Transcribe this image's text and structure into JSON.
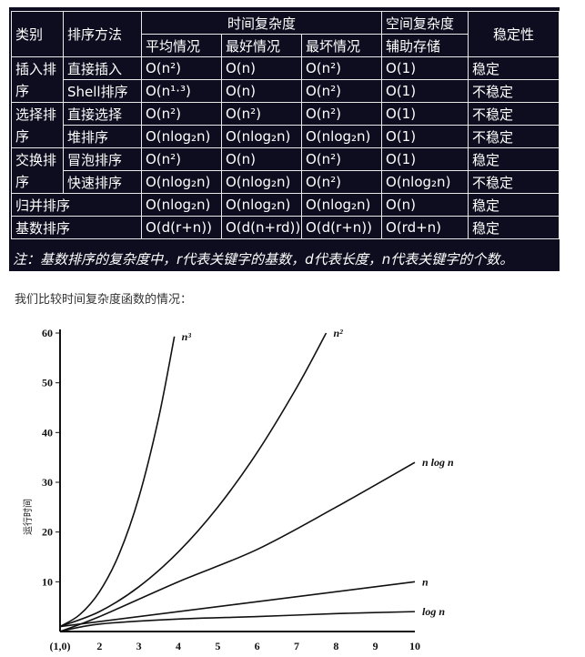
{
  "table": {
    "header": {
      "category": "类别",
      "method": "排序方法",
      "time_group": "时间复杂度",
      "space_group": "空间复杂度",
      "stability": "稳定性",
      "avg": "平均情况",
      "best": "最好情况",
      "worst": "最坏情况",
      "aux": "辅助存储"
    },
    "groups": [
      {
        "name": "插入排序",
        "rows": [
          {
            "method": "直接插入",
            "avg": "O(n²)",
            "best": "O(n)",
            "worst": "O(n²)",
            "space": "O(1)",
            "stable": "稳定"
          },
          {
            "method": "Shell排序",
            "avg": "O(n¹·³)",
            "best": "O(n)",
            "worst": "O(n²)",
            "space": "O(1)",
            "stable": "不稳定"
          }
        ]
      },
      {
        "name": "选择排序",
        "rows": [
          {
            "method": "直接选择",
            "avg": "O(n²)",
            "best": "O(n²)",
            "worst": "O(n²)",
            "space": "O(1)",
            "stable": "不稳定"
          },
          {
            "method": "堆排序",
            "avg": "O(nlog₂n)",
            "best": "O(nlog₂n)",
            "worst": "O(nlog₂n)",
            "space": "O(1)",
            "stable": "不稳定"
          }
        ]
      },
      {
        "name": "交换排序",
        "rows": [
          {
            "method": "冒泡排序",
            "avg": "O(n²)",
            "best": "O(n)",
            "worst": "O(n²)",
            "space": "O(1)",
            "stable": "稳定"
          },
          {
            "method": "快速排序",
            "avg": "O(nlog₂n)",
            "best": "O(nlog₂n)",
            "worst": "O(n²)",
            "space": "O(nlog₂n)",
            "stable": "不稳定"
          }
        ]
      }
    ],
    "singles": [
      {
        "name": "归并排序",
        "avg": "O(nlog₂n)",
        "best": "O(nlog₂n)",
        "worst": "O(nlog₂n)",
        "space": "O(n)",
        "stable": "稳定"
      },
      {
        "name": "基数排序",
        "avg": "O(d(r+n))",
        "best": "O(d(n+rd))",
        "worst": "O(d(r+n))",
        "space": "O(rd+n)",
        "stable": "稳定"
      }
    ],
    "note": "注：基数排序的复杂度中，r代表关键字的基数，d代表长度，n代表关键字的个数。"
  },
  "intro_text": "我们比较时间复杂度函数的情况：",
  "chart_data": {
    "type": "line",
    "ylabel": "运行时间",
    "x_ticks": [
      "(1,0)",
      "2",
      "3",
      "4",
      "5",
      "6",
      "7",
      "8",
      "9",
      "10"
    ],
    "y_ticks": [
      "10",
      "20",
      "30",
      "40",
      "50",
      "60"
    ],
    "xlim": [
      1,
      10
    ],
    "ylim": [
      0,
      60
    ],
    "series": [
      {
        "name": "n³",
        "x": [
          1,
          1.5,
          2,
          2.5,
          3,
          3.5,
          3.9
        ],
        "y": [
          1,
          3.4,
          8,
          15.6,
          27,
          42.9,
          59.3
        ]
      },
      {
        "name": "n²",
        "x": [
          1,
          2,
          3,
          4,
          5,
          6,
          7,
          7.75
        ],
        "y": [
          1,
          4,
          9,
          16,
          25,
          36,
          49,
          60
        ]
      },
      {
        "name": "n log n",
        "x": [
          1,
          2,
          4,
          6,
          8,
          10
        ],
        "y": [
          0,
          3,
          10,
          16.5,
          25,
          34
        ]
      },
      {
        "name": "n",
        "x": [
          1,
          10
        ],
        "y": [
          1,
          10
        ]
      },
      {
        "name": "log n",
        "x": [
          1,
          2,
          4,
          6,
          8,
          10
        ],
        "y": [
          0,
          1.5,
          2.5,
          3,
          3.6,
          4
        ]
      }
    ]
  }
}
